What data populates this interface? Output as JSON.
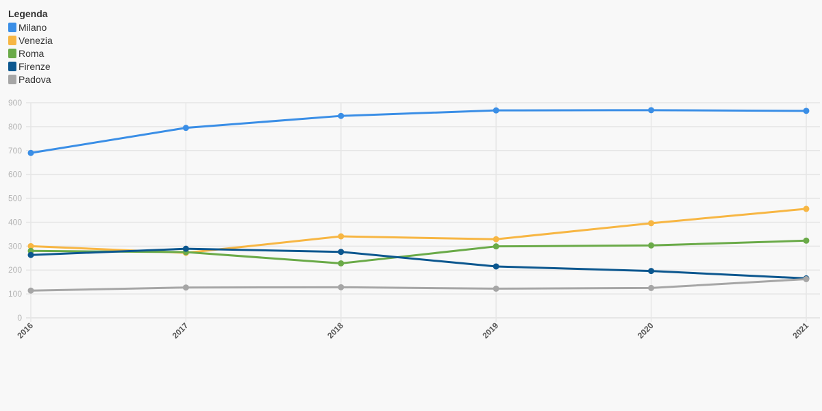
{
  "chart_data": {
    "type": "line",
    "legend_title": "Legenda",
    "legend_placement": "top-left",
    "grid": true,
    "x": [
      "2016",
      "2017",
      "2018",
      "2019",
      "2020",
      "2021"
    ],
    "ylim": [
      0,
      900
    ],
    "yticks": [
      0,
      100,
      200,
      300,
      400,
      500,
      600,
      700,
      800,
      900
    ],
    "series": [
      {
        "name": "Milano",
        "color": "#3a8ee6",
        "values": [
          690,
          795,
          845,
          868,
          869,
          866
        ]
      },
      {
        "name": "Venezia",
        "color": "#f7b643",
        "values": [
          300,
          272,
          341,
          329,
          396,
          456
        ]
      },
      {
        "name": "Roma",
        "color": "#6aaa48",
        "values": [
          280,
          275,
          228,
          299,
          303,
          323
        ]
      },
      {
        "name": "Firenze",
        "color": "#0c578f",
        "values": [
          263,
          289,
          276,
          215,
          196,
          165
        ]
      },
      {
        "name": "Padova",
        "color": "#a6a6a6",
        "values": [
          114,
          127,
          128,
          122,
          125,
          162
        ]
      }
    ]
  }
}
